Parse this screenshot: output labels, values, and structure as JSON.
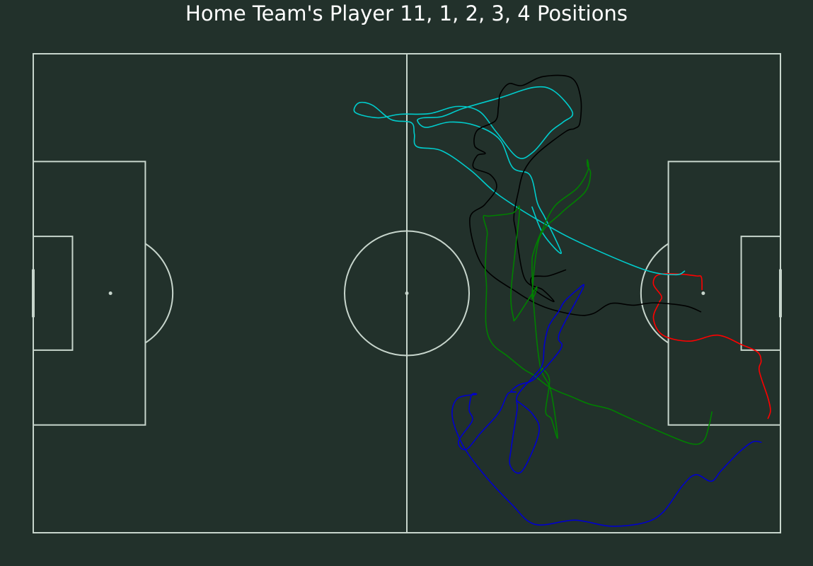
{
  "title": "Home Team's Player 11, 1, 2, 3, 4 Positions",
  "colors": {
    "background": "#22312b",
    "pitch_lines": "#c7d5cc",
    "title_text": "#ffffff"
  },
  "chart_data": {
    "type": "line",
    "title": "Home Team's Player 11, 1, 2, 3, 4 Positions",
    "xlabel": "",
    "ylabel": "",
    "xlim": [
      0,
      120
    ],
    "ylim": [
      0,
      80
    ],
    "grid": false,
    "legend": "none",
    "pitch": "statsbomb",
    "series": [
      {
        "color": "#ff0000",
        "points": [
          [
            107.4,
            39.4
          ],
          [
            107.3,
            37.3
          ],
          [
            106.5,
            37.1
          ],
          [
            103.8,
            36.8
          ],
          [
            100.4,
            36.9
          ],
          [
            99.6,
            38.5
          ],
          [
            100.9,
            40.5
          ],
          [
            100.5,
            41.6
          ],
          [
            99.6,
            44.2
          ],
          [
            101.1,
            47.0
          ],
          [
            105.4,
            48.0
          ],
          [
            109.9,
            47.0
          ],
          [
            113.8,
            48.6
          ],
          [
            116.3,
            49.8
          ],
          [
            116.9,
            51.3
          ],
          [
            116.6,
            53.0
          ],
          [
            118.0,
            57.5
          ],
          [
            118.4,
            59.6
          ],
          [
            118.0,
            60.9
          ]
        ]
      },
      {
        "color": "#00cccc",
        "points": [
          [
            104.6,
            36.3
          ],
          [
            103.2,
            36.9
          ],
          [
            98.5,
            36.2
          ],
          [
            89.6,
            32.4
          ],
          [
            83.1,
            29.0
          ],
          [
            74.9,
            23.7
          ],
          [
            70.3,
            19.5
          ],
          [
            65.6,
            16.2
          ],
          [
            61.6,
            15.5
          ],
          [
            61.2,
            13.4
          ],
          [
            60.7,
            11.5
          ],
          [
            57.5,
            11.0
          ],
          [
            54.5,
            8.6
          ],
          [
            52.3,
            8.2
          ],
          [
            51.7,
            9.8
          ],
          [
            55.3,
            10.7
          ],
          [
            58.9,
            10.1
          ],
          [
            63.6,
            10.0
          ],
          [
            68.0,
            8.8
          ],
          [
            71.6,
            9.6
          ],
          [
            74.4,
            13.1
          ],
          [
            77.8,
            17.3
          ],
          [
            80.3,
            16.4
          ],
          [
            83.1,
            13.0
          ],
          [
            85.1,
            11.4
          ],
          [
            86.6,
            9.8
          ],
          [
            83.6,
            6.2
          ],
          [
            80.4,
            5.6
          ],
          [
            75.1,
            7.3
          ],
          [
            69.1,
            9.1
          ],
          [
            65.6,
            10.5
          ],
          [
            62.6,
            10.7
          ],
          [
            61.7,
            11.2
          ],
          [
            63.1,
            12.3
          ],
          [
            66.9,
            11.4
          ],
          [
            71.1,
            12.0
          ],
          [
            74.9,
            14.3
          ],
          [
            77.0,
            19.0
          ],
          [
            79.8,
            20.3
          ],
          [
            81.0,
            25.0
          ],
          [
            82.3,
            27.6
          ],
          [
            84.8,
            33.3
          ],
          [
            81.9,
            30.1
          ],
          [
            80.1,
            25.6
          ]
        ]
      },
      {
        "color": "#000000",
        "points": [
          [
            107.2,
            43.1
          ],
          [
            104.7,
            42.1
          ],
          [
            99.7,
            41.6
          ],
          [
            96.4,
            42.0
          ],
          [
            92.8,
            41.7
          ],
          [
            89.9,
            43.4
          ],
          [
            87.2,
            43.6
          ],
          [
            82.1,
            42.3
          ],
          [
            77.8,
            39.9
          ],
          [
            72.1,
            35.3
          ],
          [
            70.1,
            27.7
          ],
          [
            72.5,
            25.2
          ],
          [
            74.4,
            22.4
          ],
          [
            73.4,
            20.2
          ],
          [
            70.7,
            19.0
          ],
          [
            71.3,
            17.0
          ],
          [
            72.6,
            16.6
          ],
          [
            70.9,
            15.4
          ],
          [
            71.3,
            12.8
          ],
          [
            74.2,
            11.2
          ],
          [
            74.7,
            8.9
          ],
          [
            75.0,
            6.7
          ],
          [
            76.4,
            5.0
          ],
          [
            78.5,
            5.3
          ],
          [
            81.9,
            3.8
          ],
          [
            86.4,
            4.0
          ],
          [
            87.9,
            7.3
          ],
          [
            87.8,
            11.5
          ],
          [
            86.9,
            12.5
          ],
          [
            85.5,
            13.0
          ],
          [
            81.0,
            16.6
          ],
          [
            78.8,
            19.6
          ],
          [
            77.9,
            23.1
          ],
          [
            77.2,
            27.0
          ],
          [
            77.5,
            29.6
          ],
          [
            78.9,
            37.5
          ],
          [
            81.8,
            39.4
          ],
          [
            83.6,
            41.4
          ],
          [
            80.4,
            39.3
          ],
          [
            80.1,
            37.3
          ],
          [
            82.7,
            37.1
          ],
          [
            85.5,
            36.1
          ]
        ]
      },
      {
        "color": "#008000",
        "points": [
          [
            109.0,
            59.8
          ],
          [
            108.5,
            62.2
          ],
          [
            107.6,
            64.7
          ],
          [
            105.5,
            65.1
          ],
          [
            100.4,
            63.0
          ],
          [
            95.0,
            60.5
          ],
          [
            92.4,
            59.3
          ],
          [
            89.3,
            58.5
          ],
          [
            86.7,
            57.4
          ],
          [
            83.1,
            55.8
          ],
          [
            80.4,
            53.7
          ],
          [
            78.8,
            52.7
          ],
          [
            76.3,
            50.6
          ],
          [
            73.7,
            48.4
          ],
          [
            72.7,
            45.1
          ],
          [
            72.8,
            39.0
          ],
          [
            72.6,
            35.8
          ],
          [
            72.8,
            31.3
          ],
          [
            72.9,
            29.7
          ],
          [
            72.3,
            27.2
          ],
          [
            73.3,
            27.1
          ],
          [
            77.0,
            26.6
          ],
          [
            78.1,
            25.7
          ],
          [
            77.5,
            32.0
          ],
          [
            76.7,
            40.2
          ],
          [
            77.1,
            44.0
          ],
          [
            77.6,
            44.1
          ],
          [
            80.8,
            39.0
          ],
          [
            80.1,
            40.6
          ],
          [
            81.3,
            30.8
          ],
          [
            84.8,
            26.6
          ],
          [
            88.6,
            23.1
          ],
          [
            89.5,
            20.1
          ],
          [
            89.0,
            18.7
          ],
          [
            89.0,
            17.7
          ],
          [
            89.1,
            19.4
          ],
          [
            87.4,
            22.4
          ],
          [
            83.8,
            25.4
          ],
          [
            81.7,
            29.5
          ],
          [
            80.4,
            33.0
          ],
          [
            80.1,
            35.2
          ],
          [
            80.4,
            42.2
          ],
          [
            81.4,
            52.1
          ],
          [
            83.1,
            56.2
          ],
          [
            84.2,
            64.1
          ],
          [
            83.2,
            61.0
          ],
          [
            82.3,
            59.7
          ],
          [
            82.9,
            54.5
          ],
          [
            81.7,
            52.5
          ]
        ]
      },
      {
        "color": "#0000cc",
        "points": [
          [
            116.9,
            64.9
          ],
          [
            115.6,
            64.8
          ],
          [
            113.4,
            66.5
          ],
          [
            110.5,
            69.6
          ],
          [
            108.9,
            71.4
          ],
          [
            106.4,
            70.3
          ],
          [
            104.3,
            72.1
          ],
          [
            101.2,
            76.5
          ],
          [
            98.2,
            78.3
          ],
          [
            92.7,
            78.9
          ],
          [
            87.0,
            77.9
          ],
          [
            80.6,
            78.6
          ],
          [
            76.8,
            75.2
          ],
          [
            72.5,
            70.4
          ],
          [
            69.0,
            65.4
          ],
          [
            67.3,
            60.6
          ],
          [
            68.1,
            57.6
          ],
          [
            71.1,
            56.9
          ],
          [
            70.4,
            57.0
          ],
          [
            70.0,
            59.5
          ],
          [
            70.5,
            61.3
          ],
          [
            68.3,
            64.7
          ],
          [
            69.5,
            66.1
          ],
          [
            71.8,
            63.4
          ],
          [
            74.8,
            59.9
          ],
          [
            76.2,
            56.8
          ],
          [
            77.5,
            56.5
          ],
          [
            76.7,
            56.4
          ],
          [
            78.0,
            55.3
          ],
          [
            80.4,
            54.4
          ],
          [
            83.3,
            51.2
          ],
          [
            84.9,
            48.8
          ],
          [
            84.5,
            46.7
          ],
          [
            88.3,
            39.1
          ],
          [
            87.4,
            39.4
          ],
          [
            85.3,
            41.4
          ],
          [
            84.4,
            43.0
          ],
          [
            82.8,
            45.5
          ],
          [
            82.1,
            48.5
          ],
          [
            81.8,
            51.8
          ],
          [
            80.6,
            53.6
          ],
          [
            77.8,
            57.0
          ],
          [
            77.7,
            59.5
          ],
          [
            76.8,
            65.6
          ],
          [
            76.6,
            68.8
          ],
          [
            78.5,
            69.7
          ],
          [
            81.2,
            63.3
          ],
          [
            80.2,
            60.2
          ],
          [
            77.6,
            57.9
          ]
        ]
      }
    ]
  }
}
